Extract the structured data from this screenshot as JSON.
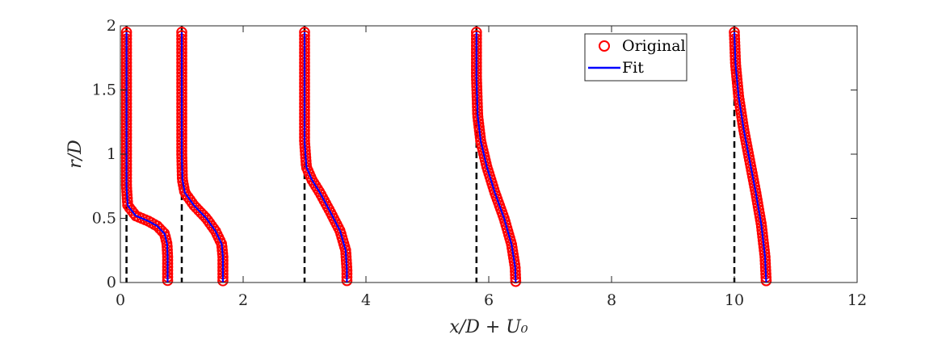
{
  "chart_data": {
    "type": "line",
    "xlabel": "x/D + U₀",
    "ylabel": "r/D",
    "xlim": [
      0,
      12
    ],
    "ylim": [
      0,
      2
    ],
    "xticks": [
      0,
      2,
      4,
      6,
      8,
      10,
      12
    ],
    "yticks": [
      0,
      0.5,
      1,
      1.5,
      2
    ],
    "xtick_labels": [
      "0",
      "2",
      "4",
      "6",
      "8",
      "10",
      "12"
    ],
    "ytick_labels": [
      "0",
      "0.5",
      "1",
      "1.5",
      "2"
    ],
    "grid": false,
    "legend": {
      "position": "top-right",
      "entries": [
        "Original",
        "Fit"
      ]
    },
    "colors": {
      "original": "#ff0000",
      "fit": "#0000ff",
      "reference": "#000000"
    },
    "reference_lines_x": [
      0.1,
      1.0,
      3.0,
      5.8,
      10.0
    ],
    "profiles": [
      {
        "x0": 0.1,
        "points": [
          [
            0.1,
            1.95
          ],
          [
            0.1,
            1.5
          ],
          [
            0.1,
            1.0
          ],
          [
            0.1,
            0.75
          ],
          [
            0.12,
            0.6
          ],
          [
            0.25,
            0.52
          ],
          [
            0.45,
            0.48
          ],
          [
            0.6,
            0.44
          ],
          [
            0.72,
            0.38
          ],
          [
            0.76,
            0.3
          ],
          [
            0.77,
            0.2
          ],
          [
            0.77,
            0.1
          ],
          [
            0.77,
            0.0
          ]
        ]
      },
      {
        "x0": 1.0,
        "points": [
          [
            1.0,
            1.95
          ],
          [
            1.0,
            1.5
          ],
          [
            1.0,
            1.0
          ],
          [
            1.01,
            0.8
          ],
          [
            1.05,
            0.7
          ],
          [
            1.2,
            0.6
          ],
          [
            1.4,
            0.5
          ],
          [
            1.55,
            0.4
          ],
          [
            1.65,
            0.3
          ],
          [
            1.67,
            0.2
          ],
          [
            1.67,
            0.1
          ],
          [
            1.67,
            0.0
          ]
        ]
      },
      {
        "x0": 3.0,
        "points": [
          [
            3.0,
            1.95
          ],
          [
            3.0,
            1.5
          ],
          [
            3.0,
            1.1
          ],
          [
            3.03,
            0.9
          ],
          [
            3.12,
            0.8
          ],
          [
            3.25,
            0.7
          ],
          [
            3.42,
            0.55
          ],
          [
            3.58,
            0.4
          ],
          [
            3.67,
            0.25
          ],
          [
            3.69,
            0.1
          ],
          [
            3.69,
            0.0
          ]
        ]
      },
      {
        "x0": 5.8,
        "points": [
          [
            5.8,
            1.95
          ],
          [
            5.8,
            1.6
          ],
          [
            5.82,
            1.3
          ],
          [
            5.87,
            1.1
          ],
          [
            5.97,
            0.9
          ],
          [
            6.1,
            0.7
          ],
          [
            6.25,
            0.5
          ],
          [
            6.37,
            0.3
          ],
          [
            6.43,
            0.12
          ],
          [
            6.44,
            0.0
          ]
        ]
      },
      {
        "x0": 10.0,
        "points": [
          [
            10.0,
            1.95
          ],
          [
            10.02,
            1.7
          ],
          [
            10.07,
            1.45
          ],
          [
            10.15,
            1.2
          ],
          [
            10.25,
            0.95
          ],
          [
            10.35,
            0.7
          ],
          [
            10.44,
            0.45
          ],
          [
            10.5,
            0.2
          ],
          [
            10.52,
            0.0
          ]
        ]
      }
    ]
  }
}
